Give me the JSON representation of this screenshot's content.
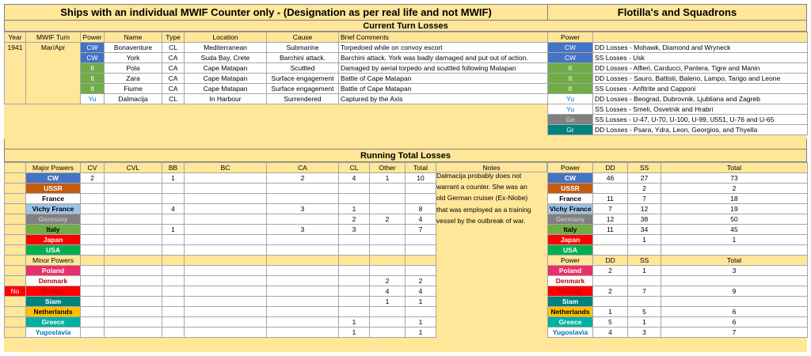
{
  "left_title": "Ships with an individual MWIF Counter only - (Designation as per real life and not MWIF)",
  "right_title": "Flotilla's and Squadrons",
  "current_title": "Current Turn Losses",
  "running_title": "Running Total Losses",
  "colors": {
    "CW": "#4472c4",
    "It": "#70ad47",
    "Yu": "#ffffff",
    "Ge": "#808080",
    "Gr": "#00827f",
    "USSR": "#c55a11",
    "France": "#ffffff",
    "VichyFrance": "#9dc3e6",
    "Germany": "#808080",
    "Japan": "#ff0000",
    "USA": "#00b050",
    "Poland": "#e8306a",
    "Denmark": "#ffffff",
    "Norway": "#ff0000",
    "Siam": "#00827f",
    "Netherlands": "#ffc000",
    "Greece": "#00b0a0",
    "Yugoslavia": "#ffffff",
    "header_bg": "#ffe699"
  },
  "current": {
    "headers": [
      "Year",
      "MWIF Turn",
      "Power",
      "Name",
      "Type",
      "Location",
      "Cause",
      "Brief Comments"
    ],
    "year": "1941",
    "turn": "Mar/Apr",
    "rows": [
      {
        "power": "CW",
        "name": "Bonaventure",
        "type": "CL",
        "location": "Mediterranean",
        "cause": "Submarine",
        "comment": "Torpedoed while on convoy escort"
      },
      {
        "power": "CW",
        "name": "York",
        "type": "CA",
        "location": "Suda Bay, Crete",
        "cause": "Barchini attack.",
        "comment": "Barchini attack. York was badly damaged and put out of action."
      },
      {
        "power": "It",
        "name": "Pola",
        "type": "CA",
        "location": "Cape Matapan",
        "cause": "Scuttled",
        "comment": "Damaged by aerial torpedo and scuttled following Matapan"
      },
      {
        "power": "It",
        "name": "Zara",
        "type": "CA",
        "location": "Cape Matapan",
        "cause": "Surface engagement",
        "comment": "Battle of Cape Matapan"
      },
      {
        "power": "It",
        "name": "Fiume",
        "type": "CA",
        "location": "Cape Matapan",
        "cause": "Surface engagement",
        "comment": "Battle of Cape Matapan"
      },
      {
        "power": "Yu",
        "name": "Dalmacija",
        "type": "CL",
        "location": "In Harbour",
        "cause": "Surrendered",
        "comment": "Captured by the Axis"
      }
    ]
  },
  "flotilla": {
    "header": "Power",
    "rows": [
      {
        "power": "CW",
        "text": "DD Losses - Mohawk, Diamond and Wryneck"
      },
      {
        "power": "CW",
        "text": "SS Losses - Usk"
      },
      {
        "power": "It",
        "text": "DD Losses - Alfieri, Carducci, Pantera, Tigre and Manin"
      },
      {
        "power": "It",
        "text": "DD Losses - Sauro, Battisti, Baleno, Lampo, Tarigo and Leone"
      },
      {
        "power": "It",
        "text": "SS Losses - Anfitrite and Capponi"
      },
      {
        "power": "Yu",
        "text": "DD Losses - Beograd, Dubrovnik, Ljubliana and Zagreb"
      },
      {
        "power": "Yu",
        "text": "SS Losses - Smeli, Osvetnik and Hrabri"
      },
      {
        "power": "Ge",
        "text": "SS Losses - U-47, U-70, U-100, U-99, U551, U-76 and U-65"
      },
      {
        "power": "Gr",
        "text": "DD Losses - Psara, Ydra, Leon, Georgios, and Thyella"
      }
    ]
  },
  "running": {
    "headers": [
      "Major Powers",
      "CV",
      "CVL",
      "BB",
      "BC",
      "CA",
      "CL",
      "Other",
      "Total",
      "Notes"
    ],
    "minor_header": "Minor Powers",
    "major": [
      {
        "name": "CW",
        "cv": "2",
        "cvl": "",
        "bb": "1",
        "bc": "",
        "ca": "2",
        "cl": "4",
        "other": "1",
        "total": "10"
      },
      {
        "name": "USSR",
        "cv": "",
        "cvl": "",
        "bb": "",
        "bc": "",
        "ca": "",
        "cl": "",
        "other": "",
        "total": ""
      },
      {
        "name": "France",
        "cv": "",
        "cvl": "",
        "bb": "",
        "bc": "",
        "ca": "",
        "cl": "",
        "other": "",
        "total": ""
      },
      {
        "name": "Vichy France",
        "cv": "",
        "cvl": "",
        "bb": "4",
        "bc": "",
        "ca": "3",
        "cl": "1",
        "other": "",
        "total": "8"
      },
      {
        "name": "Germany",
        "cv": "",
        "cvl": "",
        "bb": "",
        "bc": "",
        "ca": "",
        "cl": "2",
        "other": "2",
        "total": "4"
      },
      {
        "name": "Italy",
        "cv": "",
        "cvl": "",
        "bb": "1",
        "bc": "",
        "ca": "3",
        "cl": "3",
        "other": "",
        "total": "7"
      },
      {
        "name": "Japan",
        "cv": "",
        "cvl": "",
        "bb": "",
        "bc": "",
        "ca": "",
        "cl": "",
        "other": "",
        "total": ""
      },
      {
        "name": "USA",
        "cv": "",
        "cvl": "",
        "bb": "",
        "bc": "",
        "ca": "",
        "cl": "",
        "other": "",
        "total": ""
      }
    ],
    "minor": [
      {
        "flag": "",
        "name": "Poland",
        "cl": "",
        "other": "",
        "total": ""
      },
      {
        "flag": "",
        "name": "Denmark",
        "cl": "",
        "other": "2",
        "total": "2"
      },
      {
        "flag": "No",
        "name": "Norway",
        "cl": "",
        "other": "4",
        "total": "4"
      },
      {
        "flag": "",
        "name": "Siam",
        "cl": "",
        "other": "1",
        "total": "1"
      },
      {
        "flag": "",
        "name": "Netherlands",
        "cl": "",
        "other": "",
        "total": ""
      },
      {
        "flag": "",
        "name": "Greece",
        "cl": "1",
        "other": "",
        "total": "1"
      },
      {
        "flag": "",
        "name": "Yugoslavia",
        "cl": "1",
        "other": "",
        "total": "1"
      }
    ],
    "notes": [
      "Dalmacija probably does not",
      "warrant a counter. She was an",
      "old German cruiser (Ex-Niobe)",
      "that was employed as a training",
      "vessel by the outbreak of war."
    ]
  },
  "flotilla_totals": {
    "headers": [
      "Power",
      "DD",
      "SS",
      "Total"
    ],
    "major": [
      {
        "name": "CW",
        "dd": "46",
        "ss": "27",
        "total": "73"
      },
      {
        "name": "USSR",
        "dd": "",
        "ss": "2",
        "total": "2"
      },
      {
        "name": "France",
        "dd": "11",
        "ss": "7",
        "total": "18"
      },
      {
        "name": "Vichy France",
        "dd": "7",
        "ss": "12",
        "total": "19"
      },
      {
        "name": "Germany",
        "dd": "12",
        "ss": "38",
        "total": "50"
      },
      {
        "name": "Italy",
        "dd": "11",
        "ss": "34",
        "total": "45"
      },
      {
        "name": "Japan",
        "dd": "",
        "ss": "1",
        "total": "1"
      },
      {
        "name": "USA",
        "dd": "",
        "ss": "",
        "total": ""
      }
    ],
    "minor": [
      {
        "name": "Poland",
        "dd": "2",
        "ss": "1",
        "total": "3"
      },
      {
        "name": "Denmark",
        "dd": "",
        "ss": "",
        "total": ""
      },
      {
        "name": "Norway",
        "dd": "2",
        "ss": "7",
        "total": "9"
      },
      {
        "name": "Siam",
        "dd": "",
        "ss": "",
        "total": ""
      },
      {
        "name": "Netherlands",
        "dd": "1",
        "ss": "5",
        "total": "6"
      },
      {
        "name": "Greece",
        "dd": "5",
        "ss": "1",
        "total": "6"
      },
      {
        "name": "Yugoslavia",
        "dd": "4",
        "ss": "3",
        "total": "7"
      }
    ]
  }
}
